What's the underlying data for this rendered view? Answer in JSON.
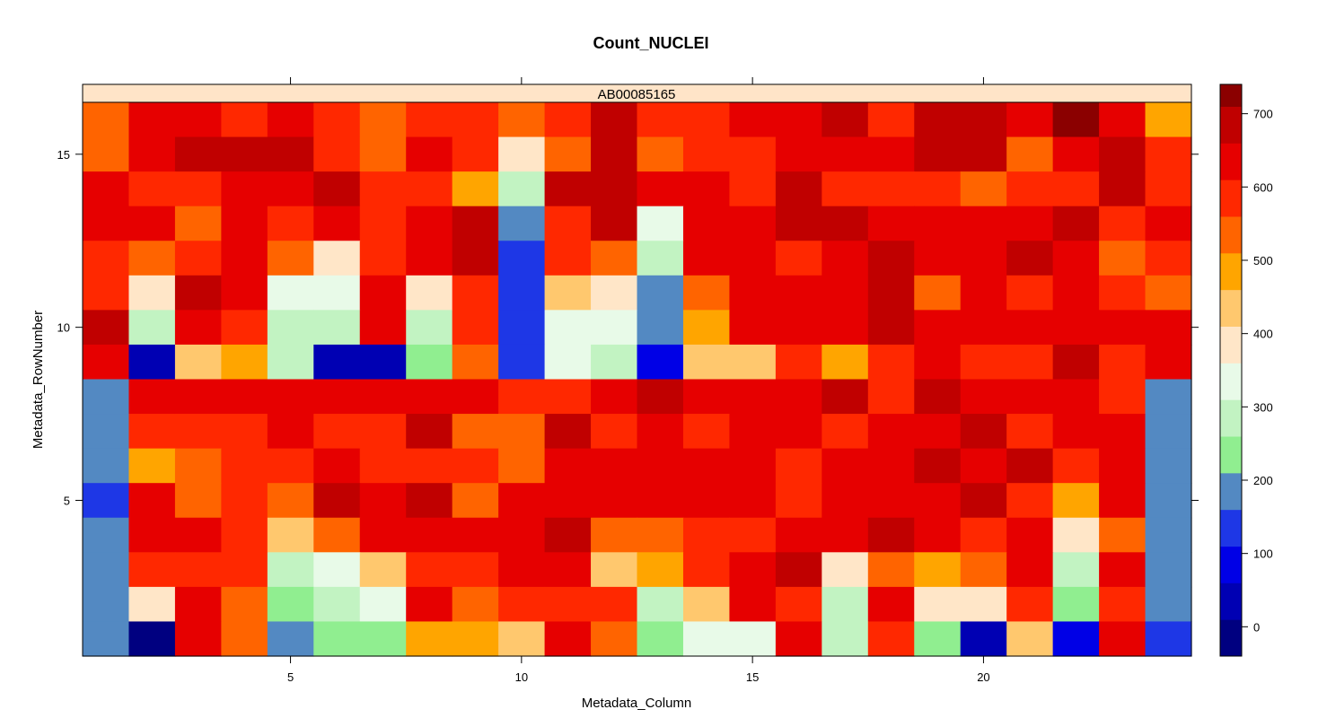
{
  "chart_data": {
    "type": "heatmap",
    "title": "Count_NUCLEI",
    "strip_label": "AB00085165",
    "xlabel": "Metadata_Column",
    "ylabel": "Metadata_RowNumber",
    "x_ticks": [
      5,
      10,
      15,
      20
    ],
    "y_ticks": [
      5,
      10,
      15
    ],
    "xlim": [
      0.5,
      24.5
    ],
    "ylim": [
      0.5,
      16.5
    ],
    "n_cols": 24,
    "n_rows": 16,
    "colorbar": {
      "breaks": [
        -40,
        10,
        60,
        110,
        160,
        210,
        260,
        310,
        360,
        410,
        460,
        510,
        560,
        610,
        660,
        710,
        740
      ],
      "colors": [
        "#000080",
        "#0000B3",
        "#0000E6",
        "#1E37E6",
        "#5389C2",
        "#90EE90",
        "#C2F3C2",
        "#E8FAE8",
        "#FFE6C8",
        "#FFC86E",
        "#FFA500",
        "#FF6400",
        "#FF2800",
        "#E60000",
        "#C00000",
        "#8B0000"
      ],
      "ticks": [
        0,
        100,
        200,
        300,
        400,
        500,
        600,
        700
      ],
      "range": [
        -40,
        740
      ]
    },
    "values_top_row_first": [
      [
        520,
        620,
        620,
        570,
        620,
        570,
        520,
        570,
        570,
        520,
        570,
        680,
        570,
        570,
        620,
        620,
        680,
        570,
        680,
        680,
        620,
        730,
        620,
        460
      ],
      [
        520,
        620,
        680,
        680,
        680,
        570,
        520,
        620,
        570,
        370,
        520,
        680,
        520,
        570,
        570,
        620,
        620,
        620,
        680,
        680,
        520,
        620,
        680,
        570
      ],
      [
        620,
        570,
        570,
        620,
        620,
        680,
        570,
        570,
        460,
        280,
        680,
        680,
        620,
        620,
        570,
        680,
        570,
        570,
        570,
        520,
        570,
        570,
        680,
        570
      ],
      [
        620,
        620,
        520,
        620,
        570,
        620,
        570,
        620,
        680,
        180,
        570,
        680,
        330,
        620,
        620,
        680,
        680,
        620,
        620,
        620,
        620,
        680,
        570,
        620
      ],
      [
        570,
        520,
        570,
        620,
        520,
        370,
        570,
        620,
        680,
        130,
        570,
        520,
        280,
        620,
        620,
        570,
        620,
        680,
        620,
        620,
        680,
        620,
        520,
        570
      ],
      [
        570,
        370,
        680,
        620,
        330,
        330,
        620,
        370,
        570,
        130,
        420,
        370,
        180,
        520,
        620,
        620,
        620,
        680,
        520,
        620,
        570,
        620,
        570,
        520
      ],
      [
        680,
        280,
        620,
        570,
        280,
        280,
        620,
        280,
        570,
        130,
        330,
        330,
        180,
        460,
        620,
        620,
        620,
        680,
        620,
        620,
        620,
        620,
        620,
        620
      ],
      [
        620,
        30,
        420,
        460,
        280,
        30,
        30,
        230,
        520,
        130,
        330,
        280,
        80,
        420,
        420,
        570,
        460,
        570,
        620,
        570,
        570,
        680,
        570,
        620
      ],
      [
        180,
        620,
        620,
        620,
        620,
        620,
        620,
        620,
        620,
        570,
        570,
        620,
        680,
        620,
        620,
        620,
        680,
        570,
        680,
        620,
        620,
        620,
        570,
        180
      ],
      [
        180,
        570,
        570,
        570,
        620,
        570,
        570,
        680,
        520,
        520,
        680,
        570,
        620,
        570,
        620,
        620,
        570,
        620,
        620,
        680,
        570,
        620,
        620,
        180
      ],
      [
        180,
        460,
        520,
        570,
        570,
        620,
        570,
        570,
        570,
        520,
        620,
        620,
        620,
        620,
        620,
        570,
        620,
        620,
        680,
        620,
        680,
        570,
        620,
        180
      ],
      [
        130,
        620,
        520,
        570,
        520,
        680,
        620,
        680,
        520,
        620,
        620,
        620,
        620,
        620,
        620,
        570,
        620,
        620,
        620,
        680,
        570,
        460,
        620,
        180
      ],
      [
        180,
        620,
        620,
        570,
        420,
        520,
        620,
        620,
        620,
        620,
        680,
        520,
        520,
        570,
        570,
        620,
        620,
        680,
        620,
        570,
        620,
        370,
        520,
        180
      ],
      [
        180,
        570,
        570,
        570,
        280,
        330,
        420,
        570,
        570,
        620,
        620,
        420,
        460,
        570,
        620,
        680,
        370,
        520,
        460,
        520,
        620,
        280,
        620,
        180
      ],
      [
        180,
        370,
        620,
        520,
        230,
        280,
        330,
        620,
        520,
        570,
        570,
        570,
        280,
        420,
        620,
        570,
        280,
        620,
        370,
        370,
        570,
        230,
        570,
        180
      ],
      [
        180,
        -10,
        620,
        520,
        180,
        230,
        230,
        460,
        460,
        420,
        620,
        520,
        230,
        330,
        330,
        620,
        280,
        570,
        230,
        30,
        420,
        80,
        620,
        130
      ]
    ]
  }
}
